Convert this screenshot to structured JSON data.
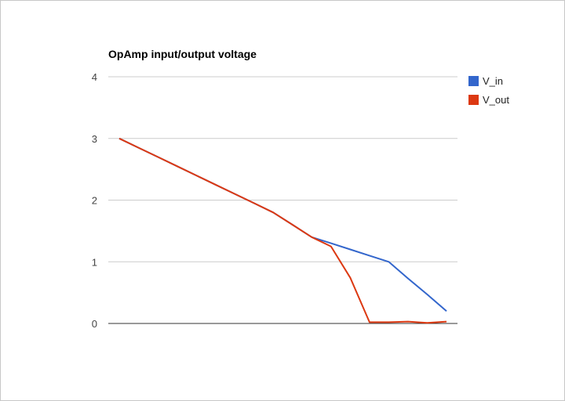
{
  "chart_data": {
    "type": "line",
    "title": "OpAmp input/output voltage",
    "xlabel": "",
    "ylabel": "",
    "ylim": [
      0,
      4
    ],
    "yticks": [
      "0",
      "1",
      "2",
      "3",
      "4"
    ],
    "grid": true,
    "legend_position": "right",
    "x": [
      0,
      1,
      2,
      3,
      4,
      5,
      6,
      7,
      8,
      9,
      10,
      11,
      12,
      13,
      14,
      15,
      16,
      17
    ],
    "series": [
      {
        "name": "V_in",
        "color": "#3366cc",
        "values": [
          3.0,
          2.85,
          2.7,
          2.55,
          2.4,
          2.25,
          2.1,
          1.95,
          1.8,
          1.6,
          1.4,
          1.3,
          1.2,
          1.1,
          1.0,
          0.73,
          0.47,
          0.2
        ]
      },
      {
        "name": "V_out",
        "color": "#dc3912",
        "values": [
          3.0,
          2.85,
          2.7,
          2.55,
          2.4,
          2.25,
          2.1,
          1.95,
          1.8,
          1.6,
          1.4,
          1.25,
          0.74,
          0.02,
          0.02,
          0.03,
          0.01,
          0.03
        ]
      }
    ]
  }
}
